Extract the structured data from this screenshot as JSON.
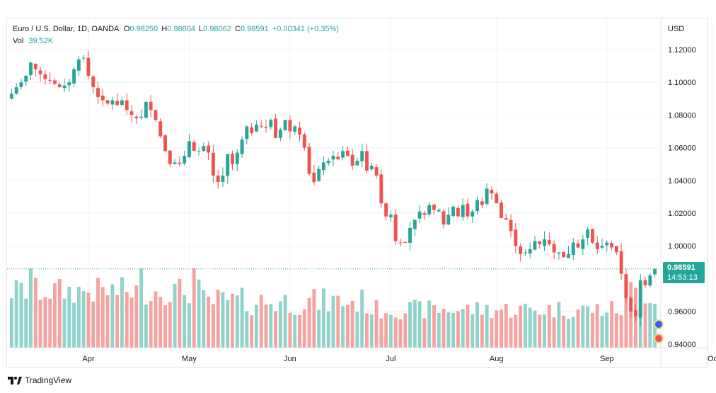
{
  "legend": {
    "symbol": "Euro / U.S. Dollar, 1D, OANDA",
    "open_label": "O",
    "open": "0.98250",
    "high_label": "H",
    "high": "0.98604",
    "low_label": "L",
    "low": "0.98062",
    "close_label": "C",
    "close": "0.98591",
    "change": "+0.00341 (+0.35%)",
    "vol_label": "Vol",
    "vol": "39.52K"
  },
  "price_axis": {
    "currency": "USD",
    "ticks": [
      "1.12000",
      "1.10000",
      "1.08000",
      "1.06000",
      "1.04000",
      "1.02000",
      "1.00000",
      "0.96000",
      "0.94000"
    ]
  },
  "last_price": {
    "price": "0.98591",
    "countdown": "14:53:13"
  },
  "footer": {
    "brand": "TradingView",
    "brand_icon": "tradingview-logo"
  },
  "colors": {
    "up": "#26a69a",
    "down": "#ef5350",
    "up_vol": "#8fd3cb",
    "down_vol": "#f5a3a1"
  },
  "chart_data": {
    "type": "candlestick",
    "title": "Euro / U.S. Dollar, 1D, OANDA",
    "ylabel": "USD",
    "ylim": [
      0.935,
      1.125
    ],
    "grid": true,
    "x_labels": [
      "Apr",
      "May",
      "Jun",
      "Jul",
      "Aug",
      "Sep",
      "Oc"
    ],
    "month_starts": [
      16,
      37,
      58,
      79,
      101,
      124,
      146
    ],
    "closes": [
      1.093,
      1.097,
      1.1,
      1.104,
      1.112,
      1.108,
      1.105,
      1.102,
      1.101,
      1.099,
      1.097,
      1.098,
      1.1,
      1.108,
      1.114,
      1.115,
      1.104,
      1.097,
      1.091,
      1.089,
      1.087,
      1.089,
      1.086,
      1.089,
      1.083,
      1.08,
      1.078,
      1.079,
      1.088,
      1.083,
      1.077,
      1.067,
      1.058,
      1.05,
      1.051,
      1.05,
      1.055,
      1.064,
      1.058,
      1.058,
      1.061,
      1.057,
      1.043,
      1.039,
      1.043,
      1.056,
      1.05,
      1.057,
      1.065,
      1.073,
      1.069,
      1.074,
      1.073,
      1.072,
      1.077,
      1.066,
      1.071,
      1.077,
      1.07,
      1.073,
      1.068,
      1.06,
      1.044,
      1.039,
      1.047,
      1.051,
      1.052,
      1.055,
      1.053,
      1.058,
      1.055,
      1.049,
      1.052,
      1.058,
      1.046,
      1.049,
      1.043,
      1.026,
      1.018,
      1.019,
      1.003,
      1.002,
      1.002,
      1.011,
      1.016,
      1.021,
      1.019,
      1.025,
      1.022,
      1.022,
      1.013,
      1.019,
      1.024,
      1.018,
      1.025,
      1.018,
      1.021,
      1.028,
      1.025,
      1.035,
      1.032,
      1.026,
      1.017,
      1.016,
      1.009,
      1.0,
      0.995,
      0.996,
      0.998,
      1.003,
      1.001,
      1.004,
      1.001,
      0.996,
      0.996,
      0.993,
      0.995,
      1.002,
      0.999,
      1.004,
      1.01,
      1.002,
      0.998,
      1.0,
      1.002,
      0.999,
      0.996,
      0.983,
      0.968,
      0.96,
      0.957,
      0.979,
      0.976,
      0.982,
      0.986
    ],
    "series": [
      {
        "name": "Price",
        "values": "closes"
      },
      {
        "name": "Vol",
        "values": "volume_k"
      }
    ],
    "last": {
      "open": 0.9825,
      "high": 0.98604,
      "low": 0.98062,
      "close": 0.98591,
      "volume": "39.52K"
    }
  }
}
